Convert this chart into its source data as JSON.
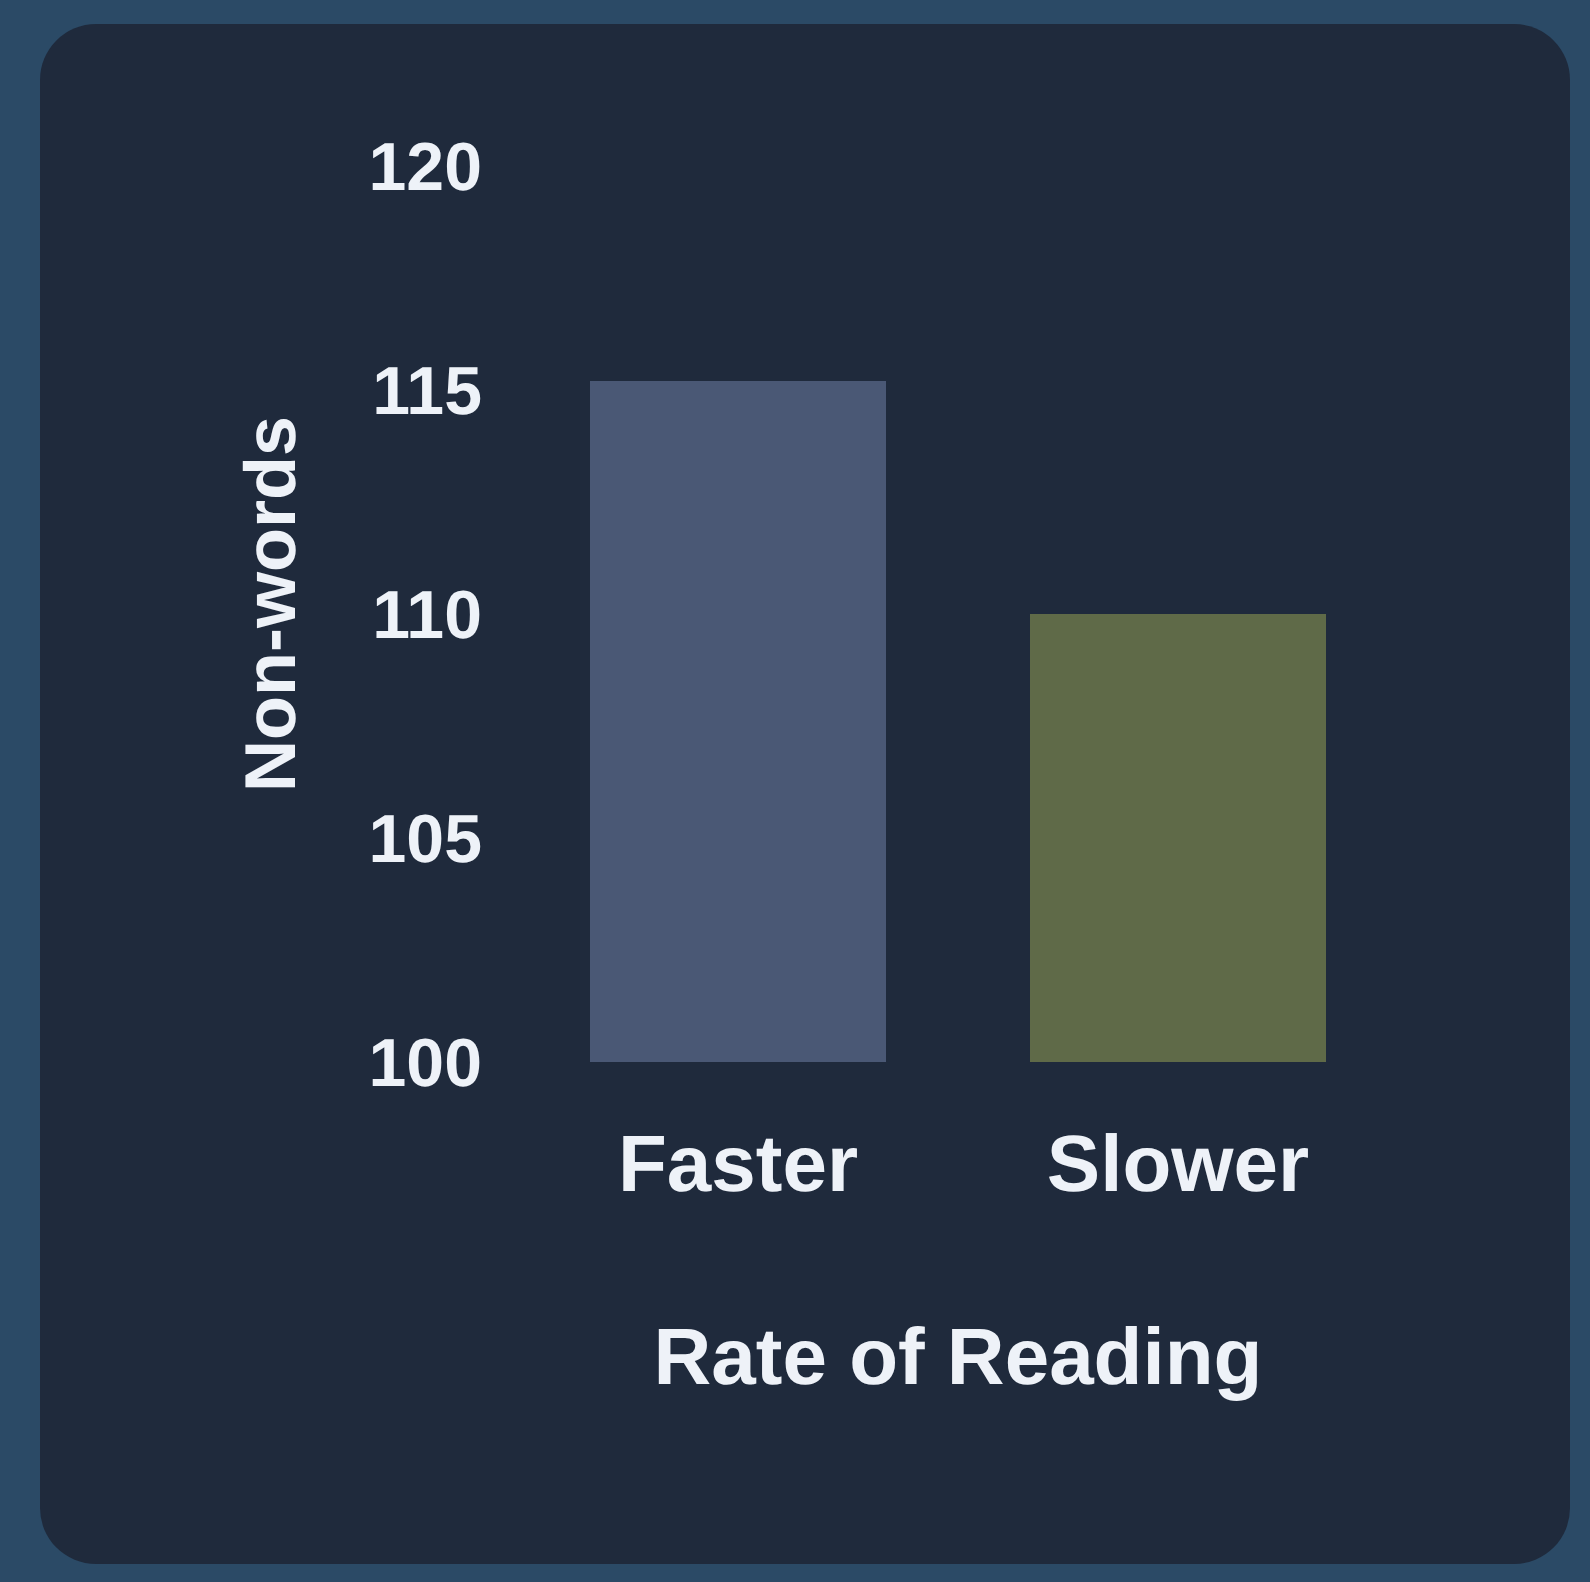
{
  "chart_data": {
    "type": "bar",
    "xlabel": "Rate of Reading",
    "ylabel": "Non-words",
    "categories": [
      "Faster",
      "Slower"
    ],
    "values": [
      115.2,
      110.0
    ],
    "colors": [
      "#4a5875",
      "#5f6a48"
    ],
    "ylim": [
      100,
      120
    ],
    "yticks": [
      100,
      105,
      110,
      115,
      120
    ],
    "grid": false,
    "legend": false
  }
}
